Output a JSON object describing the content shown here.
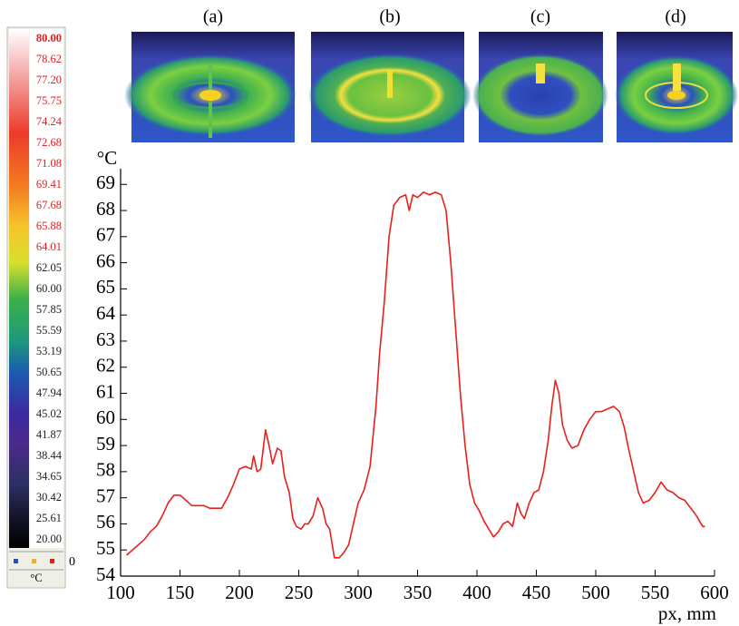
{
  "chart_data": {
    "type": "line",
    "y_label": "°C",
    "x_label": "px, mm",
    "panel_labels": [
      "(a)",
      "(b)",
      "(c)",
      "(d)"
    ],
    "colorbar": {
      "unit": "°C",
      "marker_label": "0",
      "ticks": [
        {
          "value": 80,
          "label": "80.00",
          "color": "#e02020"
        },
        {
          "value": 78.62,
          "label": "78.62",
          "color": "#e02020"
        },
        {
          "value": 77.2,
          "label": "77.20",
          "color": "#e02020"
        },
        {
          "value": 75.75,
          "label": "75.75",
          "color": "#e02020"
        },
        {
          "value": 74.24,
          "label": "74.24",
          "color": "#e02020"
        },
        {
          "value": 72.68,
          "label": "72.68",
          "color": "#e02020"
        },
        {
          "value": 71.08,
          "label": "71.08",
          "color": "#e02020"
        },
        {
          "value": 69.41,
          "label": "69.41",
          "color": "#e02020"
        },
        {
          "value": 67.68,
          "label": "67.68",
          "color": "#e02020"
        },
        {
          "value": 65.88,
          "label": "65.88",
          "color": "#e02020"
        },
        {
          "value": 64.01,
          "label": "64.01",
          "color": "#e02020"
        },
        {
          "value": 62.05,
          "label": "62.05",
          "color": "#222222"
        },
        {
          "value": 60,
          "label": "60.00",
          "color": "#222222"
        },
        {
          "value": 57.85,
          "label": "57.85",
          "color": "#222222"
        },
        {
          "value": 55.59,
          "label": "55.59",
          "color": "#222222"
        },
        {
          "value": 53.19,
          "label": "53.19",
          "color": "#222222"
        },
        {
          "value": 50.65,
          "label": "50.65",
          "color": "#222222"
        },
        {
          "value": 47.94,
          "label": "47.94",
          "color": "#222222"
        },
        {
          "value": 45.02,
          "label": "45.02",
          "color": "#222222"
        },
        {
          "value": 41.87,
          "label": "41.87",
          "color": "#222222"
        },
        {
          "value": 38.44,
          "label": "38.44",
          "color": "#222222"
        },
        {
          "value": 34.65,
          "label": "34.65",
          "color": "#222222"
        },
        {
          "value": 30.42,
          "label": "30.42",
          "color": "#222222"
        },
        {
          "value": 25.61,
          "label": "25.61",
          "color": "#222222"
        },
        {
          "value": 20,
          "label": "20.00",
          "color": "#222222"
        }
      ]
    },
    "xlim": [
      100,
      600
    ],
    "ylim": [
      54,
      69.6
    ],
    "xticks": [
      100,
      150,
      200,
      250,
      300,
      350,
      400,
      450,
      500,
      550,
      600
    ],
    "yticks": [
      54,
      55,
      56,
      57,
      58,
      59,
      60,
      61,
      62,
      63,
      64,
      65,
      66,
      67,
      68,
      69
    ],
    "grid": false,
    "series": [
      {
        "color": "#e8201c",
        "x": [
          105,
          110,
          115,
          120,
          125,
          130,
          135,
          140,
          145,
          150,
          155,
          160,
          165,
          170,
          175,
          180,
          185,
          190,
          195,
          200,
          205,
          210,
          212,
          215,
          218,
          222,
          225,
          228,
          232,
          235,
          238,
          242,
          245,
          248,
          252,
          255,
          258,
          262,
          266,
          270,
          273,
          276,
          280,
          284,
          288,
          292,
          296,
          300,
          305,
          310,
          315,
          318,
          322,
          326,
          330,
          335,
          340,
          343,
          346,
          350,
          355,
          360,
          365,
          370,
          374,
          378,
          382,
          386,
          390,
          394,
          398,
          402,
          406,
          410,
          414,
          418,
          422,
          426,
          430,
          434,
          437,
          440,
          444,
          448,
          452,
          456,
          460,
          463,
          466,
          469,
          472,
          476,
          480,
          485,
          490,
          495,
          500,
          505,
          510,
          515,
          520,
          524,
          528,
          532,
          536,
          540,
          545,
          550,
          555,
          560,
          565,
          570,
          575,
          580,
          585,
          590,
          592
        ],
        "values": [
          54.8,
          55.0,
          55.2,
          55.4,
          55.7,
          55.9,
          56.3,
          56.8,
          57.1,
          57.1,
          56.9,
          56.7,
          56.7,
          56.7,
          56.6,
          56.6,
          56.6,
          57.0,
          57.5,
          58.1,
          58.2,
          58.1,
          58.6,
          58.0,
          58.1,
          59.6,
          59.0,
          58.3,
          58.9,
          58.8,
          57.8,
          57.2,
          56.2,
          55.9,
          55.8,
          56.0,
          56.0,
          56.3,
          57.0,
          56.6,
          56.0,
          55.8,
          54.7,
          54.7,
          54.9,
          55.2,
          56.0,
          56.8,
          57.3,
          58.2,
          60.5,
          62.5,
          64.5,
          67.0,
          68.2,
          68.5,
          68.6,
          68.0,
          68.6,
          68.5,
          68.7,
          68.6,
          68.7,
          68.6,
          68.0,
          66.0,
          63.5,
          61.0,
          59.0,
          57.5,
          56.8,
          56.5,
          56.1,
          55.8,
          55.5,
          55.7,
          56.0,
          56.1,
          55.9,
          56.8,
          56.4,
          56.2,
          56.8,
          57.2,
          57.3,
          58.0,
          59.2,
          60.5,
          61.5,
          61.0,
          59.8,
          59.2,
          58.9,
          59.0,
          59.6,
          60.0,
          60.3,
          60.3,
          60.4,
          60.5,
          60.3,
          59.7,
          58.8,
          58.0,
          57.2,
          56.8,
          56.9,
          57.2,
          57.6,
          57.3,
          57.2,
          57.0,
          56.9,
          56.6,
          56.3,
          55.9,
          55.9
        ]
      }
    ]
  }
}
